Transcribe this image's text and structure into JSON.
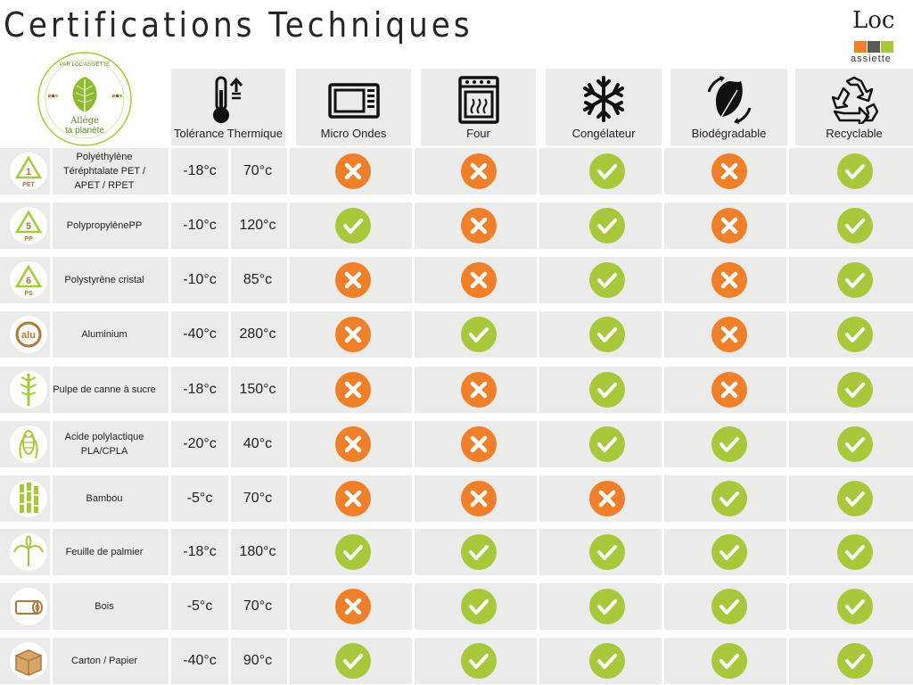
{
  "title": "Certifications Techniques",
  "brand": {
    "letters": "Loc",
    "tagline": "assiette"
  },
  "badge": {
    "arc_text": "PAR LOC'ASSIETTE",
    "line1": "Allège",
    "line2": "ta planète"
  },
  "colors": {
    "row_bg": "#ebebea",
    "ok": "#a6c83a",
    "no": "#f07f2a",
    "ok_icon": "check-circle-icon",
    "no_icon": "cross-circle-icon"
  },
  "headers": {
    "thermal": "Tolérance Thermique",
    "microwave": "Micro Ondes",
    "oven": "Four",
    "freezer": "Congélateur",
    "biodegradable": "Biodégradable",
    "recyclable": "Recyclable"
  },
  "rows": [
    {
      "icon": "resin-code-1-icon",
      "code": "1",
      "code_label": "PET",
      "name": "Polyéthylène Téréphtalate PET / APET / RPET",
      "tmin": "-18°c",
      "tmax": "70°c",
      "microwave": false,
      "oven": false,
      "freezer": true,
      "biodegradable": false,
      "recyclable": true
    },
    {
      "icon": "resin-code-5-icon",
      "code": "5",
      "code_label": "PP",
      "name": "PolypropylènePP",
      "tmin": "-10°c",
      "tmax": "120°c",
      "microwave": true,
      "oven": false,
      "freezer": true,
      "biodegradable": false,
      "recyclable": true
    },
    {
      "icon": "resin-code-6-icon",
      "code": "6",
      "code_label": "PS",
      "name": "Polystyrène cristal",
      "tmin": "-10°c",
      "tmax": "85°c",
      "microwave": false,
      "oven": false,
      "freezer": true,
      "biodegradable": false,
      "recyclable": true
    },
    {
      "icon": "aluminium-icon",
      "code": "alu",
      "code_label": "",
      "name": "Aluminium",
      "tmin": "-40°c",
      "tmax": "280°c",
      "microwave": false,
      "oven": true,
      "freezer": true,
      "biodegradable": false,
      "recyclable": true
    },
    {
      "icon": "sugarcane-icon",
      "code": "",
      "code_label": "",
      "name": "Pulpe de canne à sucre",
      "tmin": "-18°c",
      "tmax": "150°c",
      "microwave": false,
      "oven": false,
      "freezer": true,
      "biodegradable": false,
      "recyclable": true
    },
    {
      "icon": "corn-icon",
      "code": "",
      "code_label": "",
      "name": "Acide polylactique PLA/CPLA",
      "tmin": "-20°c",
      "tmax": "40°c",
      "microwave": false,
      "oven": false,
      "freezer": true,
      "biodegradable": true,
      "recyclable": true
    },
    {
      "icon": "bamboo-icon",
      "code": "",
      "code_label": "",
      "name": "Bambou",
      "tmin": "-5°c",
      "tmax": "70°c",
      "microwave": false,
      "oven": false,
      "freezer": false,
      "biodegradable": true,
      "recyclable": true
    },
    {
      "icon": "palm-leaf-icon",
      "code": "",
      "code_label": "",
      "name": "Feuille de palmier",
      "tmin": "-18°c",
      "tmax": "180°c",
      "microwave": true,
      "oven": true,
      "freezer": true,
      "biodegradable": true,
      "recyclable": true
    },
    {
      "icon": "wood-log-icon",
      "code": "",
      "code_label": "",
      "name": "Bois",
      "tmin": "-5°c",
      "tmax": "70°c",
      "microwave": false,
      "oven": true,
      "freezer": true,
      "biodegradable": true,
      "recyclable": true
    },
    {
      "icon": "cardboard-box-icon",
      "code": "",
      "code_label": "",
      "name": "Carton / Papier",
      "tmin": "-40°c",
      "tmax": "90°c",
      "microwave": true,
      "oven": true,
      "freezer": true,
      "biodegradable": true,
      "recyclable": true
    }
  ]
}
